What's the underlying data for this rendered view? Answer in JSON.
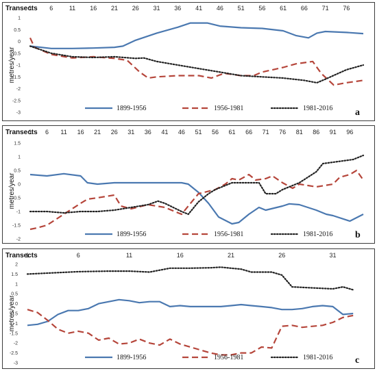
{
  "chart_data": [
    {
      "type": "line",
      "panel_label": "a",
      "x_title": "Transects",
      "ylabel": "metres/year",
      "x_ticks": [
        1,
        6,
        11,
        16,
        21,
        26,
        31,
        36,
        41,
        46,
        51,
        56,
        61,
        66,
        71,
        76
      ],
      "xlim": [
        1,
        80
      ],
      "ylim": [
        -3,
        1
      ],
      "y_ticks": [
        1,
        0.5,
        0,
        -0.5,
        -1,
        -1.5,
        -2,
        -2.5,
        -3
      ],
      "y_tick_labels": [
        "1",
        "0.5",
        "0",
        "-0.5",
        "-1",
        "-1.5",
        "-2",
        "-2.5",
        "-3"
      ],
      "grid": false,
      "legend_position": "bottom",
      "series": [
        {
          "name": "1899-1956",
          "color": "#4a78b0",
          "style": "solid",
          "points": [
            [
              1,
              -0.2
            ],
            [
              6,
              -0.3
            ],
            [
              11,
              -0.3
            ],
            [
              16,
              -0.28
            ],
            [
              21,
              -0.25
            ],
            [
              23,
              -0.2
            ],
            [
              26,
              0.05
            ],
            [
              31,
              0.35
            ],
            [
              36,
              0.6
            ],
            [
              39,
              0.78
            ],
            [
              43,
              0.78
            ],
            [
              46,
              0.65
            ],
            [
              51,
              0.58
            ],
            [
              56,
              0.55
            ],
            [
              61,
              0.45
            ],
            [
              64,
              0.25
            ],
            [
              67,
              0.15
            ],
            [
              69,
              0.35
            ],
            [
              71,
              0.42
            ],
            [
              76,
              0.38
            ],
            [
              80,
              0.33
            ]
          ]
        },
        {
          "name": "1956-1981",
          "color": "#b5453a",
          "style": "dashed",
          "points": [
            [
              1,
              0.15
            ],
            [
              2,
              -0.25
            ],
            [
              6,
              -0.55
            ],
            [
              11,
              -0.7
            ],
            [
              16,
              -0.65
            ],
            [
              21,
              -0.72
            ],
            [
              24,
              -0.8
            ],
            [
              27,
              -1.3
            ],
            [
              29,
              -1.55
            ],
            [
              31,
              -1.5
            ],
            [
              36,
              -1.45
            ],
            [
              41,
              -1.45
            ],
            [
              44,
              -1.55
            ],
            [
              47,
              -1.35
            ],
            [
              51,
              -1.45
            ],
            [
              54,
              -1.45
            ],
            [
              56,
              -1.3
            ],
            [
              61,
              -1.1
            ],
            [
              64,
              -0.95
            ],
            [
              68,
              -0.85
            ],
            [
              70,
              -1.35
            ],
            [
              73,
              -1.85
            ],
            [
              76,
              -1.75
            ],
            [
              80,
              -1.65
            ]
          ]
        },
        {
          "name": "1981-2016",
          "color": "#222222",
          "style": "dotted",
          "points": [
            [
              1,
              -0.2
            ],
            [
              6,
              -0.5
            ],
            [
              11,
              -0.65
            ],
            [
              16,
              -0.68
            ],
            [
              21,
              -0.65
            ],
            [
              26,
              -0.72
            ],
            [
              28,
              -0.7
            ],
            [
              31,
              -0.85
            ],
            [
              36,
              -1.0
            ],
            [
              41,
              -1.15
            ],
            [
              46,
              -1.3
            ],
            [
              51,
              -1.45
            ],
            [
              56,
              -1.5
            ],
            [
              61,
              -1.55
            ],
            [
              66,
              -1.65
            ],
            [
              69,
              -1.75
            ],
            [
              71,
              -1.6
            ],
            [
              76,
              -1.2
            ],
            [
              80,
              -1.0
            ]
          ]
        }
      ]
    },
    {
      "type": "line",
      "panel_label": "b",
      "x_title": "Transects",
      "ylabel": "metres/year",
      "x_ticks": [
        1,
        6,
        11,
        16,
        21,
        26,
        31,
        36,
        41,
        46,
        51,
        56,
        61,
        66,
        71,
        76,
        81,
        86,
        91,
        96
      ],
      "xlim": [
        1,
        100
      ],
      "ylim": [
        -2,
        1.5
      ],
      "y_ticks": [
        1.5,
        1,
        0.5,
        0,
        -0.5,
        -1,
        -1.5,
        -2
      ],
      "y_tick_labels": [
        "1.5",
        "1",
        "0.5",
        "0",
        "-0.5",
        "-1",
        "-1.5",
        "-2"
      ],
      "grid": false,
      "legend_position": "bottom",
      "series": [
        {
          "name": "1899-1956",
          "color": "#4a78b0",
          "style": "solid",
          "points": [
            [
              1,
              0.35
            ],
            [
              6,
              0.3
            ],
            [
              11,
              0.38
            ],
            [
              16,
              0.3
            ],
            [
              18,
              0.05
            ],
            [
              21,
              0.0
            ],
            [
              26,
              0.05
            ],
            [
              31,
              0.05
            ],
            [
              36,
              0.05
            ],
            [
              41,
              0.05
            ],
            [
              46,
              0.05
            ],
            [
              48,
              0.0
            ],
            [
              51,
              -0.3
            ],
            [
              54,
              -0.7
            ],
            [
              57,
              -1.2
            ],
            [
              61,
              -1.45
            ],
            [
              63,
              -1.4
            ],
            [
              66,
              -1.1
            ],
            [
              69,
              -0.85
            ],
            [
              71,
              -0.95
            ],
            [
              76,
              -0.8
            ],
            [
              78,
              -0.72
            ],
            [
              81,
              -0.75
            ],
            [
              86,
              -0.95
            ],
            [
              89,
              -1.1
            ],
            [
              91,
              -1.15
            ],
            [
              96,
              -1.35
            ],
            [
              100,
              -1.1
            ]
          ]
        },
        {
          "name": "1956-1981",
          "color": "#b5453a",
          "style": "dashed",
          "points": [
            [
              1,
              -1.65
            ],
            [
              3,
              -1.6
            ],
            [
              6,
              -1.5
            ],
            [
              11,
              -1.1
            ],
            [
              16,
              -0.7
            ],
            [
              18,
              -0.55
            ],
            [
              21,
              -0.5
            ],
            [
              26,
              -0.4
            ],
            [
              28,
              -0.8
            ],
            [
              31,
              -0.9
            ],
            [
              36,
              -0.75
            ],
            [
              41,
              -0.85
            ],
            [
              46,
              -1.1
            ],
            [
              48,
              -0.8
            ],
            [
              51,
              -0.35
            ],
            [
              56,
              -0.2
            ],
            [
              59,
              0.0
            ],
            [
              61,
              0.2
            ],
            [
              63,
              0.15
            ],
            [
              66,
              0.35
            ],
            [
              68,
              0.15
            ],
            [
              71,
              0.2
            ],
            [
              73,
              0.3
            ],
            [
              76,
              0.05
            ],
            [
              79,
              -0.15
            ],
            [
              81,
              0.0
            ],
            [
              86,
              -0.1
            ],
            [
              91,
              0.0
            ],
            [
              93,
              0.25
            ],
            [
              96,
              0.35
            ],
            [
              98,
              0.5
            ],
            [
              100,
              0.15
            ]
          ]
        },
        {
          "name": "1981-2016",
          "color": "#222222",
          "style": "dotted",
          "points": [
            [
              1,
              -1.0
            ],
            [
              6,
              -1.0
            ],
            [
              11,
              -1.05
            ],
            [
              16,
              -1.0
            ],
            [
              21,
              -1.0
            ],
            [
              26,
              -0.95
            ],
            [
              31,
              -0.85
            ],
            [
              36,
              -0.75
            ],
            [
              39,
              -0.62
            ],
            [
              41,
              -0.7
            ],
            [
              46,
              -1.0
            ],
            [
              48,
              -1.1
            ],
            [
              51,
              -0.65
            ],
            [
              54,
              -0.35
            ],
            [
              56,
              -0.2
            ],
            [
              61,
              0.05
            ],
            [
              66,
              0.05
            ],
            [
              69,
              0.05
            ],
            [
              71,
              -0.35
            ],
            [
              74,
              -0.35
            ],
            [
              76,
              -0.2
            ],
            [
              79,
              -0.05
            ],
            [
              81,
              0.05
            ],
            [
              86,
              0.45
            ],
            [
              88,
              0.75
            ],
            [
              91,
              0.8
            ],
            [
              94,
              0.85
            ],
            [
              97,
              0.9
            ],
            [
              100,
              1.05
            ]
          ]
        }
      ]
    },
    {
      "type": "line",
      "panel_label": "c",
      "x_title": "Transects",
      "ylabel": "metres/year",
      "x_ticks": [
        1,
        6,
        11,
        16,
        21,
        26,
        31
      ],
      "xlim": [
        1,
        34
      ],
      "ylim": [
        -3,
        2
      ],
      "y_ticks": [
        2,
        1.5,
        1,
        0.5,
        0,
        -0.5,
        -1,
        -1.5,
        -2,
        -2.5,
        -3
      ],
      "y_tick_labels": [
        "2",
        "1.5",
        "1",
        "0.5",
        "0",
        "-0.5",
        "-1",
        "-1.5",
        "-2",
        "-2.5",
        "-3"
      ],
      "grid": false,
      "legend_position": "bottom",
      "series": [
        {
          "name": "1899-1956",
          "color": "#4a78b0",
          "style": "solid",
          "points": [
            [
              1,
              -1.1
            ],
            [
              2,
              -1.05
            ],
            [
              3,
              -0.9
            ],
            [
              4,
              -0.55
            ],
            [
              5,
              -0.35
            ],
            [
              6,
              -0.35
            ],
            [
              7,
              -0.25
            ],
            [
              8,
              0.0
            ],
            [
              9,
              0.1
            ],
            [
              10,
              0.2
            ],
            [
              11,
              0.15
            ],
            [
              12,
              0.05
            ],
            [
              13,
              0.1
            ],
            [
              14,
              0.1
            ],
            [
              15,
              -0.15
            ],
            [
              16,
              -0.1
            ],
            [
              17,
              -0.15
            ],
            [
              18,
              -0.15
            ],
            [
              19,
              -0.15
            ],
            [
              20,
              -0.15
            ],
            [
              21,
              -0.1
            ],
            [
              22,
              -0.05
            ],
            [
              23,
              -0.1
            ],
            [
              24,
              -0.15
            ],
            [
              25,
              -0.2
            ],
            [
              26,
              -0.3
            ],
            [
              27,
              -0.3
            ],
            [
              28,
              -0.25
            ],
            [
              29,
              -0.15
            ],
            [
              30,
              -0.1
            ],
            [
              31,
              -0.15
            ],
            [
              32,
              -0.55
            ],
            [
              33,
              -0.5
            ]
          ]
        },
        {
          "name": "1956-1981",
          "color": "#b5453a",
          "style": "dashed",
          "points": [
            [
              1,
              -0.3
            ],
            [
              2,
              -0.45
            ],
            [
              3,
              -0.85
            ],
            [
              4,
              -1.3
            ],
            [
              5,
              -1.5
            ],
            [
              6,
              -1.4
            ],
            [
              7,
              -1.5
            ],
            [
              8,
              -1.85
            ],
            [
              9,
              -1.75
            ],
            [
              10,
              -2.05
            ],
            [
              11,
              -2.0
            ],
            [
              12,
              -1.8
            ],
            [
              13,
              -2.0
            ],
            [
              14,
              -2.1
            ],
            [
              15,
              -1.8
            ],
            [
              16,
              -2.05
            ],
            [
              17,
              -2.2
            ],
            [
              18,
              -2.35
            ],
            [
              19,
              -2.5
            ],
            [
              20,
              -2.6
            ],
            [
              21,
              -2.6
            ],
            [
              22,
              -2.5
            ],
            [
              23,
              -2.5
            ],
            [
              24,
              -2.2
            ],
            [
              25,
              -2.25
            ],
            [
              26,
              -1.15
            ],
            [
              27,
              -1.1
            ],
            [
              28,
              -1.2
            ],
            [
              29,
              -1.15
            ],
            [
              30,
              -1.1
            ],
            [
              31,
              -0.95
            ],
            [
              32,
              -0.7
            ],
            [
              33,
              -0.6
            ]
          ]
        },
        {
          "name": "1981-2016",
          "color": "#222222",
          "style": "dotted",
          "points": [
            [
              1,
              1.5
            ],
            [
              3,
              1.55
            ],
            [
              6,
              1.62
            ],
            [
              9,
              1.65
            ],
            [
              11,
              1.65
            ],
            [
              13,
              1.6
            ],
            [
              15,
              1.8
            ],
            [
              17,
              1.8
            ],
            [
              19,
              1.82
            ],
            [
              20,
              1.85
            ],
            [
              21,
              1.8
            ],
            [
              22,
              1.75
            ],
            [
              23,
              1.6
            ],
            [
              25,
              1.6
            ],
            [
              26,
              1.45
            ],
            [
              27,
              0.85
            ],
            [
              29,
              0.8
            ],
            [
              31,
              0.75
            ],
            [
              32,
              0.85
            ],
            [
              33,
              0.7
            ]
          ]
        }
      ]
    }
  ]
}
